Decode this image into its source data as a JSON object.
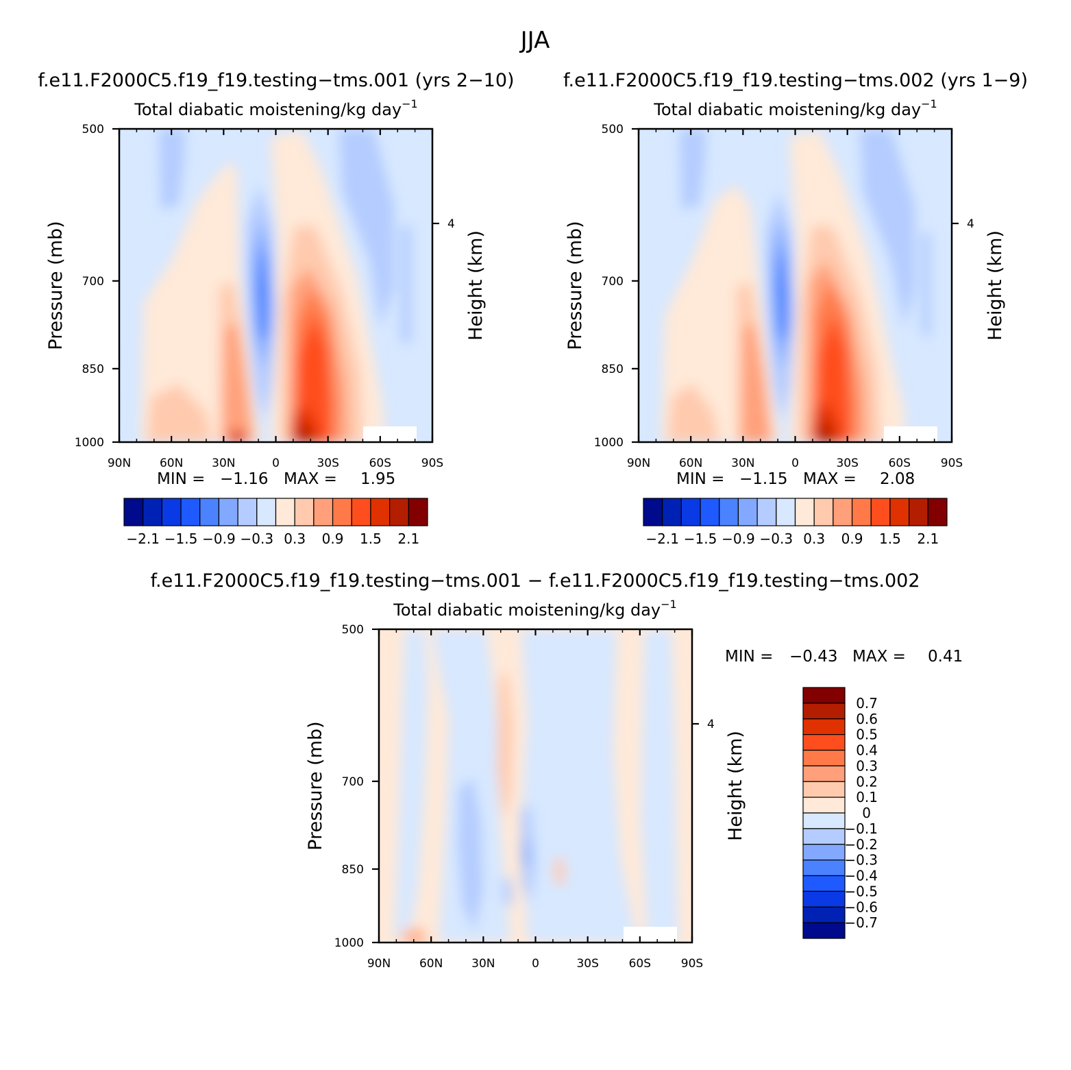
{
  "figure": {
    "title": "JJA"
  },
  "chart_data": [
    {
      "type": "heatmap",
      "title": "f.e11.F2000C5.f19_f19.testing−tms.001 (yrs 2−10)",
      "subtitle": "Total diabatic moistening/kg day",
      "subtitle_sup": "−1",
      "xlabel": "",
      "ylabel": "Pressure (mb)",
      "ylabel_right": "Height (km)",
      "x_ticks": [
        "90N",
        "60N",
        "30N",
        "0",
        "30S",
        "60S",
        "90S"
      ],
      "y_ticks": [
        "500",
        "700",
        "850",
        "1000"
      ],
      "y_right_ticks": [
        "4"
      ],
      "xlim": [
        -90,
        90
      ],
      "ylim": [
        1000,
        500
      ],
      "min_label": "MIN =",
      "min_value": "−1.16",
      "max_label": "MAX =",
      "max_value": "1.95",
      "levels": [
        -2.1,
        -1.8,
        -1.5,
        -1.2,
        -0.9,
        -0.6,
        -0.3,
        0,
        0.3,
        0.6,
        0.9,
        1.2,
        1.5,
        1.8,
        2.1
      ],
      "colorbar_labels": [
        "−2.1",
        "−1.5",
        "−0.9",
        "−0.3",
        "0.3",
        "0.9",
        "1.5",
        "2.1"
      ],
      "features": [
        {
          "x": -8,
          "p": 740,
          "value": -1.16
        },
        {
          "x": 20,
          "p": 990,
          "value": 1.95
        },
        {
          "x": 20,
          "p": 850,
          "value": 1.5
        },
        {
          "x": -30,
          "p": 950,
          "value": 0.9
        }
      ]
    },
    {
      "type": "heatmap",
      "title": "f.e11.F2000C5.f19_f19.testing−tms.002 (yrs 1−9)",
      "subtitle": "Total diabatic moistening/kg day",
      "subtitle_sup": "−1",
      "xlabel": "",
      "ylabel": "Pressure (mb)",
      "ylabel_right": "Height (km)",
      "x_ticks": [
        "90N",
        "60N",
        "30N",
        "0",
        "30S",
        "60S",
        "90S"
      ],
      "y_ticks": [
        "500",
        "700",
        "850",
        "1000"
      ],
      "y_right_ticks": [
        "4"
      ],
      "xlim": [
        -90,
        90
      ],
      "ylim": [
        1000,
        500
      ],
      "min_label": "MIN =",
      "min_value": "−1.15",
      "max_label": "MAX =",
      "max_value": "2.08",
      "levels": [
        -2.1,
        -1.8,
        -1.5,
        -1.2,
        -0.9,
        -0.6,
        -0.3,
        0,
        0.3,
        0.6,
        0.9,
        1.2,
        1.5,
        1.8,
        2.1
      ],
      "colorbar_labels": [
        "−2.1",
        "−1.5",
        "−0.9",
        "−0.3",
        "0.3",
        "0.9",
        "1.5",
        "2.1"
      ],
      "features": [
        {
          "x": -8,
          "p": 740,
          "value": -1.15
        },
        {
          "x": 18,
          "p": 990,
          "value": 2.08
        },
        {
          "x": 20,
          "p": 850,
          "value": 1.5
        },
        {
          "x": -30,
          "p": 950,
          "value": 0.9
        }
      ]
    },
    {
      "type": "heatmap",
      "title": "f.e11.F2000C5.f19_f19.testing−tms.001 − f.e11.F2000C5.f19_f19.testing−tms.002",
      "subtitle": "Total diabatic moistening/kg day",
      "subtitle_sup": "−1",
      "xlabel": "",
      "ylabel": "Pressure (mb)",
      "ylabel_right": "Height (km)",
      "x_ticks": [
        "90N",
        "60N",
        "30N",
        "0",
        "30S",
        "60S",
        "90S"
      ],
      "y_ticks": [
        "500",
        "700",
        "850",
        "1000"
      ],
      "y_right_ticks": [
        "4"
      ],
      "xlim": [
        -90,
        90
      ],
      "ylim": [
        1000,
        500
      ],
      "min_label": "MIN =",
      "min_value": "−0.43",
      "max_label": "MAX =",
      "max_value": "0.41",
      "levels": [
        -0.7,
        -0.6,
        -0.5,
        -0.4,
        -0.3,
        -0.2,
        -0.1,
        0,
        0.1,
        0.2,
        0.3,
        0.4,
        0.5,
        0.6,
        0.7
      ],
      "colorbar_labels": [
        "0.7",
        "0.6",
        "0.5",
        "0.4",
        "0.3",
        "0.2",
        "0.1",
        "0",
        "−0.1",
        "−0.2",
        "−0.3",
        "−0.4",
        "−0.5",
        "−0.6",
        "−0.7"
      ],
      "features": [
        {
          "x": -70,
          "p": 995,
          "value": 0.41
        },
        {
          "x": -30,
          "p": 860,
          "value": -0.43
        },
        {
          "x": -15,
          "p": 780,
          "value": 0.2
        },
        {
          "x": 5,
          "p": 860,
          "value": -0.3
        }
      ]
    }
  ],
  "colors": {
    "palette": [
      "#000a8c",
      "#0022b4",
      "#0a3ae6",
      "#1e5aff",
      "#4a82ff",
      "#82a8ff",
      "#b4ccff",
      "#d7e8ff",
      "#ffe9d8",
      "#ffcaae",
      "#ffa07a",
      "#ff7a48",
      "#ff4e1e",
      "#e03200",
      "#b41e00",
      "#820000"
    ]
  }
}
